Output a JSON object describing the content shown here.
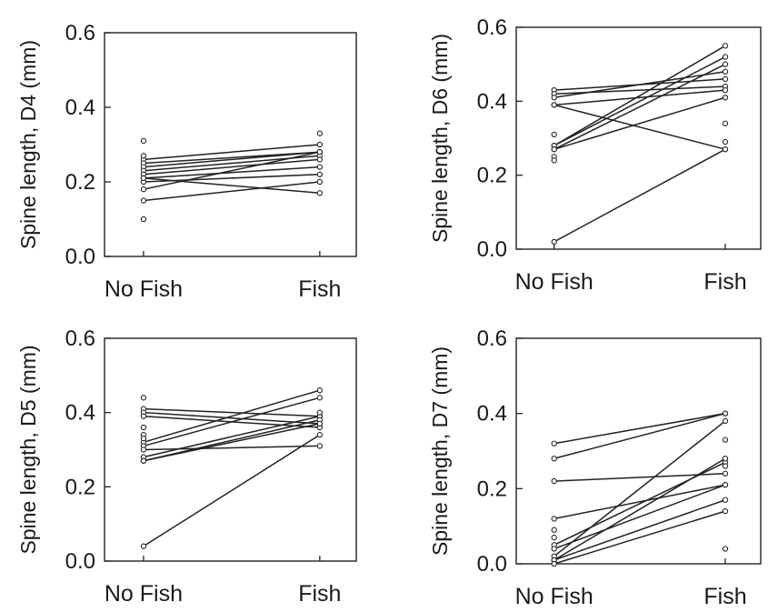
{
  "chart_data": [
    {
      "type": "line",
      "panel": "D4",
      "ylabel": "Spine length, D4 (mm)",
      "categories": [
        "No Fish",
        "Fish"
      ],
      "ylim": [
        0.0,
        0.6
      ],
      "yticks": [
        "0.0",
        "0.2",
        "0.4",
        "0.6"
      ],
      "pairs": [
        [
          0.26,
          0.3
        ],
        [
          0.25,
          0.28
        ],
        [
          0.24,
          0.28
        ],
        [
          0.23,
          0.27
        ],
        [
          0.22,
          0.26
        ],
        [
          0.21,
          0.24
        ],
        [
          0.2,
          0.22
        ],
        [
          0.18,
          0.28
        ],
        [
          0.15,
          0.2
        ],
        [
          0.21,
          0.17
        ]
      ],
      "extra_points": {
        "No Fish": [
          0.31,
          0.27,
          0.1
        ],
        "Fish": [
          0.33
        ]
      }
    },
    {
      "type": "line",
      "panel": "D6",
      "ylabel": "Spine length, D6 (mm)",
      "categories": [
        "No Fish",
        "Fish"
      ],
      "ylim": [
        0.0,
        0.6
      ],
      "yticks": [
        "0.0",
        "0.2",
        "0.4",
        "0.6"
      ],
      "pairs": [
        [
          0.43,
          0.46
        ],
        [
          0.42,
          0.44
        ],
        [
          0.41,
          0.48
        ],
        [
          0.39,
          0.43
        ],
        [
          0.39,
          0.27
        ],
        [
          0.28,
          0.55
        ],
        [
          0.28,
          0.52
        ],
        [
          0.27,
          0.5
        ],
        [
          0.27,
          0.41
        ],
        [
          0.02,
          0.27
        ]
      ],
      "extra_points": {
        "No Fish": [
          0.31,
          0.25,
          0.24
        ],
        "Fish": [
          0.34,
          0.29
        ]
      }
    },
    {
      "type": "line",
      "panel": "D5",
      "ylabel": "Spine length, D5 (mm)",
      "categories": [
        "No Fish",
        "Fish"
      ],
      "ylim": [
        0.0,
        0.6
      ],
      "yticks": [
        "0.0",
        "0.2",
        "0.4",
        "0.6"
      ],
      "pairs": [
        [
          0.41,
          0.39
        ],
        [
          0.4,
          0.37
        ],
        [
          0.39,
          0.36
        ],
        [
          0.32,
          0.46
        ],
        [
          0.31,
          0.44
        ],
        [
          0.3,
          0.31
        ],
        [
          0.28,
          0.39
        ],
        [
          0.27,
          0.38
        ],
        [
          0.27,
          0.37
        ],
        [
          0.04,
          0.34
        ]
      ],
      "extra_points": {
        "No Fish": [
          0.44,
          0.36,
          0.34,
          0.33
        ],
        "Fish": [
          0.4
        ]
      }
    },
    {
      "type": "line",
      "panel": "D7",
      "ylabel": "Spine length, D7 (mm)",
      "categories": [
        "No Fish",
        "Fish"
      ],
      "ylim": [
        0.0,
        0.6
      ],
      "yticks": [
        "0.0",
        "0.2",
        "0.4",
        "0.6"
      ],
      "pairs": [
        [
          0.32,
          0.4
        ],
        [
          0.28,
          0.4
        ],
        [
          0.22,
          0.24
        ],
        [
          0.12,
          0.21
        ],
        [
          0.05,
          0.27
        ],
        [
          0.04,
          0.21
        ],
        [
          0.02,
          0.38
        ],
        [
          0.01,
          0.28
        ],
        [
          0.01,
          0.17
        ],
        [
          0.0,
          0.14
        ]
      ],
      "extra_points": {
        "No Fish": [
          0.09,
          0.07
        ],
        "Fish": [
          0.33,
          0.26,
          0.04
        ]
      }
    }
  ]
}
